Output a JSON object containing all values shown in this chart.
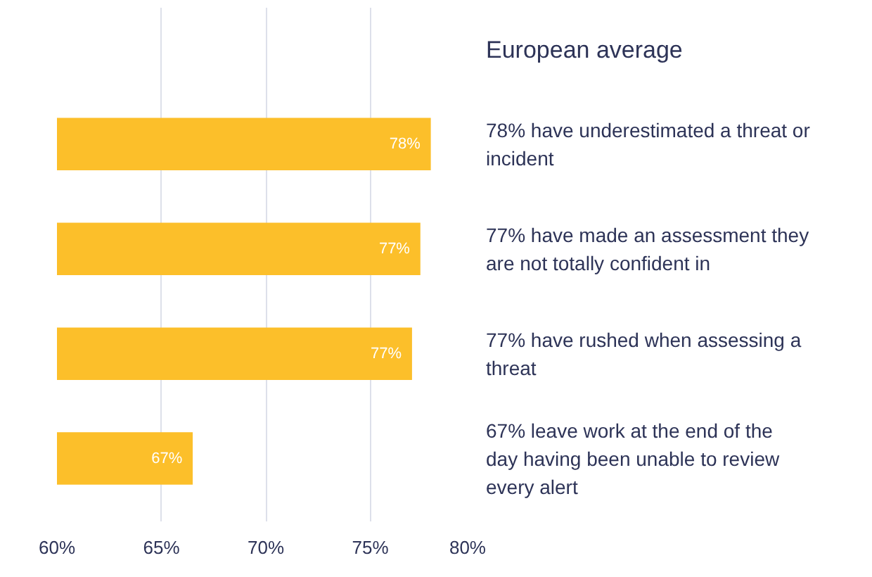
{
  "chart_data": {
    "type": "bar",
    "orientation": "horizontal",
    "title": "European average",
    "categories": [
      null,
      null,
      null,
      null
    ],
    "values": [
      77.9,
      77.4,
      77.0,
      66.5
    ],
    "value_labels": [
      "78%",
      "77%",
      "77%",
      "67%"
    ],
    "color": "#fcbf2a",
    "xlim": [
      60,
      80
    ],
    "xticks": [
      {
        "value": 60,
        "label": "60%"
      },
      {
        "value": 65,
        "label": "65%"
      },
      {
        "value": 70,
        "label": "70%"
      },
      {
        "value": 75,
        "label": "75%"
      },
      {
        "value": 80,
        "label": "80%"
      }
    ],
    "grid": "x",
    "annotations": [
      "78% have underestimated a threat or incident",
      "77% have made an assessment they are not totally confident in",
      "77% have rushed when assessing a threat",
      "67% leave work at the end of the day having been unable to review every alert"
    ]
  }
}
